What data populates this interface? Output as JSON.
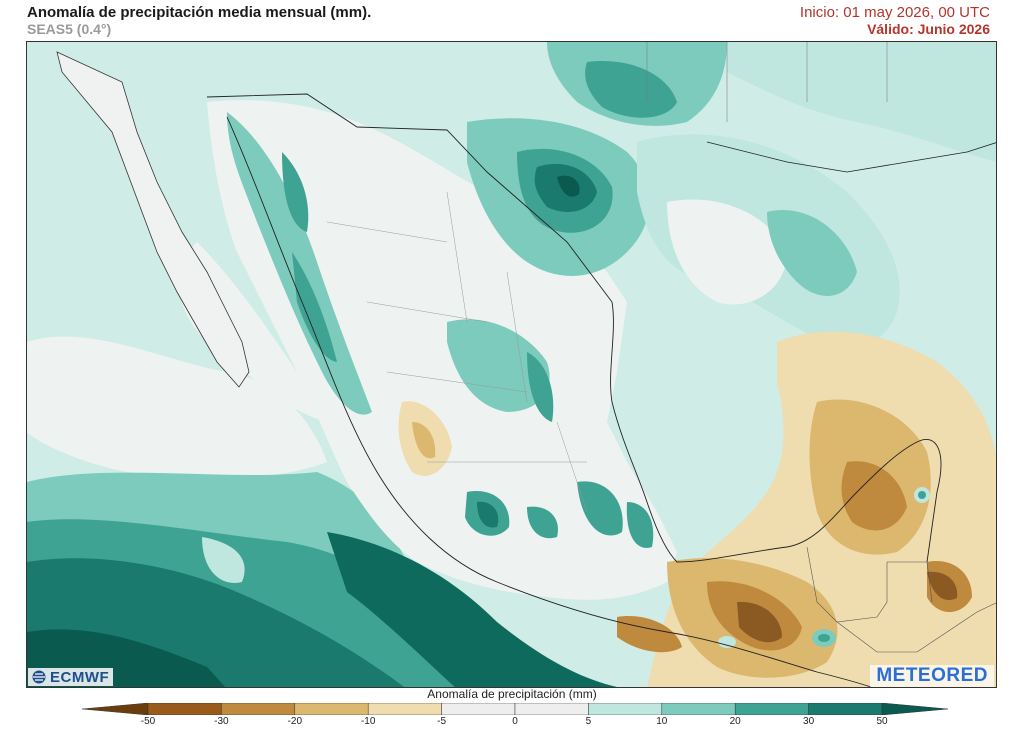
{
  "header": {
    "title": "Anomalía de precipitación media mensual (mm).",
    "subtitle": "SEAS5 (0.4°)",
    "init": "Inicio: 01 may 2026, 00 UTC",
    "valid": "Válido: Junio 2026"
  },
  "logos": {
    "ecmwf": "ECMWF",
    "meteored": "METEORED"
  },
  "legend": {
    "title": "Anomalía de precipitación (mm)",
    "ticks": [
      "-50",
      "-30",
      "-20",
      "-10",
      "-5",
      "0",
      "5",
      "10",
      "20",
      "30",
      "50"
    ],
    "colors": [
      "#6b3d0c",
      "#9a5a1c",
      "#c08a3e",
      "#dcb86e",
      "#efdcaf",
      "#eeeeee",
      "#eeeeee",
      "#bfe6df",
      "#7ccbbd",
      "#3fa394",
      "#1a7a6e",
      "#0a5a50"
    ]
  },
  "map": {
    "region": "Mexico / Central America",
    "colors": {
      "ocean_deep": "#0f6a5e",
      "ocean_mid": "#3fa394",
      "teal_light": "#7ccbbd",
      "teal_pale": "#bfe6df",
      "near_zero": "#eef3f2",
      "dry_light": "#efdcaf",
      "dry_mid": "#dcb86e",
      "dry_strong": "#c08a3e",
      "dry_dark": "#8a5a22"
    }
  }
}
